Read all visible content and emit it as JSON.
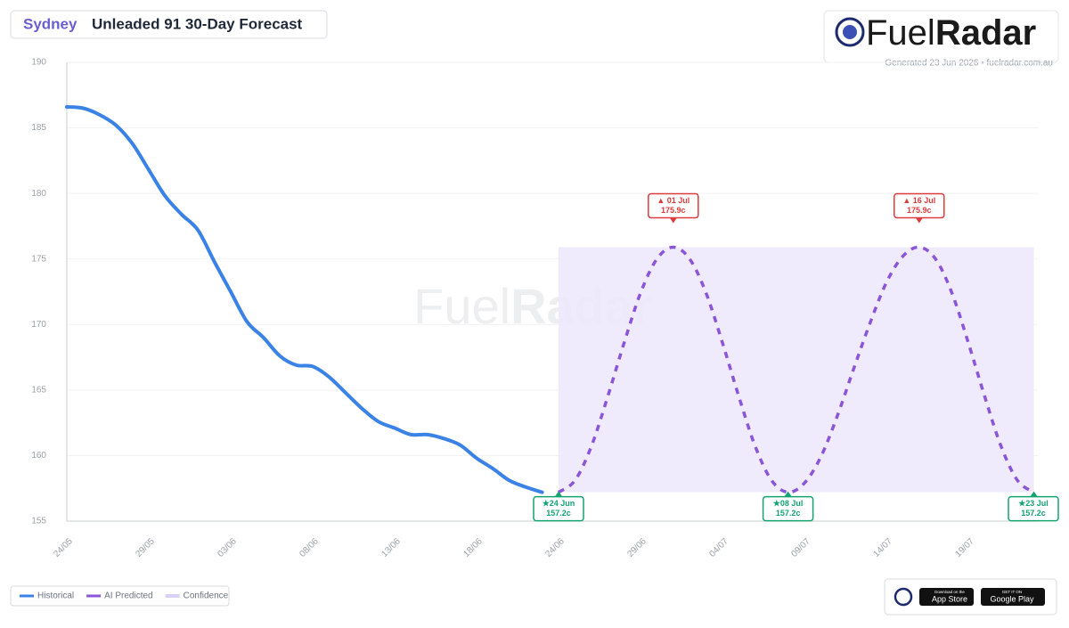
{
  "header": {
    "city": "Sydney",
    "title": "Unleaded 91 30-Day Forecast"
  },
  "logo": {
    "fuel": "Fuel",
    "radar": "Radar",
    "generated": "Generated 23 Jun 2026 • fuelradar.com.au"
  },
  "chart_data": {
    "type": "line",
    "categories": [
      "24/05",
      null,
      null,
      null,
      null,
      "29/05",
      null,
      null,
      null,
      null,
      "03/06",
      null,
      null,
      null,
      null,
      "08/06",
      null,
      null,
      null,
      null,
      "13/06",
      null,
      null,
      null,
      null,
      "18/06",
      null,
      null,
      null,
      null,
      "24/06",
      null,
      null,
      null,
      null,
      "29/06",
      null,
      null,
      null,
      null,
      "04/07",
      null,
      null,
      null,
      null,
      "09/07",
      null,
      null,
      null,
      null,
      "14/07",
      null,
      null,
      null,
      null,
      "19/07",
      null,
      null,
      null,
      null
    ],
    "series": [
      {
        "name": "Historical",
        "color": "#3b82e6",
        "values": [
          186.6,
          186.5,
          186.0,
          185.2,
          183.8,
          181.8,
          179.8,
          178.4,
          177.2,
          174.8,
          172.5,
          170.2,
          169.0,
          167.6,
          166.9,
          166.8,
          166.0,
          164.8,
          163.6,
          162.6,
          162.1,
          161.6,
          161.6,
          161.3,
          160.8,
          159.8,
          159.0,
          158.1,
          157.6,
          157.2,
          null,
          null,
          null,
          null,
          null,
          null,
          null,
          null,
          null,
          null,
          null,
          null,
          null,
          null,
          null,
          null,
          null,
          null,
          null,
          null,
          null,
          null,
          null,
          null,
          null,
          null,
          null,
          null,
          null,
          null
        ]
      },
      {
        "name": "AI Predicted",
        "color": "#8a55d8",
        "dashed": true,
        "values": [
          null,
          null,
          null,
          null,
          null,
          null,
          null,
          null,
          null,
          null,
          null,
          null,
          null,
          null,
          null,
          null,
          null,
          null,
          null,
          null,
          null,
          null,
          null,
          null,
          null,
          null,
          null,
          null,
          null,
          null,
          157.2,
          158.1,
          160.7,
          164.5,
          168.6,
          172.4,
          175.0,
          175.9,
          175.0,
          172.4,
          168.6,
          164.5,
          160.7,
          158.1,
          157.2,
          157.9,
          159.9,
          163.0,
          166.6,
          170.1,
          173.2,
          175.2,
          175.9,
          175.0,
          172.4,
          168.6,
          164.5,
          160.7,
          158.1,
          157.2
        ]
      }
    ],
    "band": {
      "name": "Confidence",
      "color": "#ede7fb",
      "lower": 157.2,
      "upper": 175.9
    },
    "annotations": [
      {
        "text": "★24 Jun",
        "value": 157.2,
        "value_label": "157.2c",
        "color": "#12a36e"
      },
      {
        "text": "▲ 01 Jul",
        "value": 175.9,
        "value_label": "175.9c",
        "color": "#dc3c3c"
      },
      {
        "text": "★08 Jul",
        "value": 157.2,
        "value_label": "157.2c",
        "color": "#12a36e"
      },
      {
        "text": "▲ 16 Jul",
        "value": 175.9,
        "value_label": "175.9c",
        "color": "#dc3c3c"
      },
      {
        "text": "★23 Jul",
        "value": 157.2,
        "value_label": "157.2c",
        "color": "#12a36e"
      }
    ],
    "ylim": [
      155,
      190
    ],
    "yticks": [
      155,
      160,
      165,
      170,
      175,
      180,
      185,
      190
    ],
    "grid": true
  },
  "badges": {
    "app_store_top": "Download on the",
    "app_store": "App Store",
    "google_top": "GET IT ON",
    "google": "Google Play"
  }
}
